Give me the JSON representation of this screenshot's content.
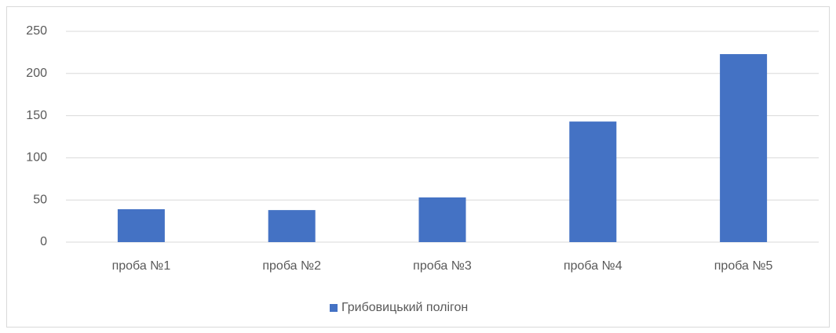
{
  "chart_data": {
    "type": "bar",
    "categories": [
      "проба №1",
      "проба №2",
      "проба №3",
      "проба №4",
      "проба №5"
    ],
    "series": [
      {
        "name": "Грибовицький полігон",
        "color": "#4472c4",
        "values": [
          39,
          38,
          53,
          143,
          223
        ]
      }
    ],
    "ylim": [
      0,
      250
    ],
    "yticks": [
      0,
      50,
      100,
      150,
      200,
      250
    ],
    "grid": true,
    "legend": "bottom"
  }
}
